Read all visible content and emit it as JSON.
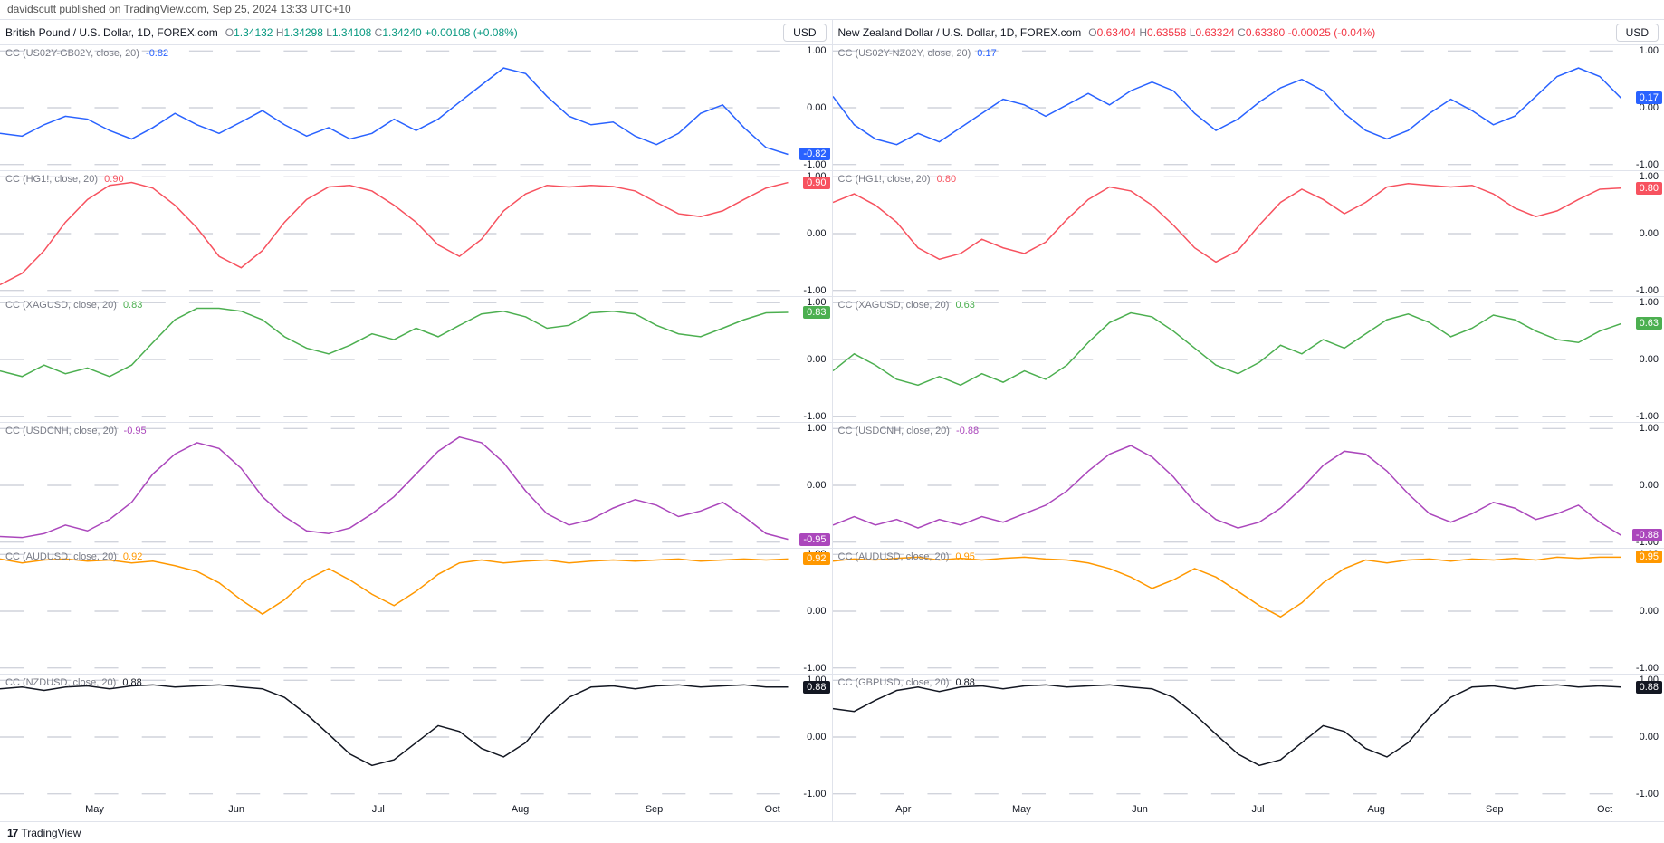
{
  "topbar": "davidscutt published on TradingView.com, Sep 25, 2024 13:33 UTC+10",
  "footer": {
    "logo": "17",
    "text": "TradingView"
  },
  "usd_label": "USD",
  "yticks": [
    "1.00",
    "0.00",
    "-1.00"
  ],
  "grid_color": "#d1d4dc",
  "colors": {
    "blue": "#2962ff",
    "red": "#f7525f",
    "green": "#4caf50",
    "purple": "#ab47bc",
    "orange": "#ff9800",
    "black": "#131722"
  },
  "columns": [
    {
      "title": "British Pound / U.S. Dollar, 1D, FOREX.com",
      "ohlc": {
        "O": "1.34132",
        "H": "1.34298",
        "L": "1.34108",
        "C": "1.34240",
        "chg": "+0.00108",
        "pct": "(+0.08%)",
        "dir": "pos"
      },
      "xticks": [
        {
          "p": 0.12,
          "l": "May"
        },
        {
          "p": 0.3,
          "l": "Jun"
        },
        {
          "p": 0.48,
          "l": "Jul"
        },
        {
          "p": 0.66,
          "l": "Aug"
        },
        {
          "p": 0.83,
          "l": "Sep"
        },
        {
          "p": 0.98,
          "l": "Oct"
        }
      ],
      "panels": [
        {
          "label": "CC (US02Y-GB02Y, close, 20)",
          "val": "-0.82",
          "color": "blue",
          "badge": "-0.82",
          "data": [
            -0.45,
            -0.5,
            -0.3,
            -0.15,
            -0.2,
            -0.4,
            -0.55,
            -0.35,
            -0.1,
            -0.3,
            -0.45,
            -0.25,
            -0.05,
            -0.3,
            -0.5,
            -0.35,
            -0.55,
            -0.45,
            -0.2,
            -0.4,
            -0.2,
            0.1,
            0.4,
            0.7,
            0.6,
            0.2,
            -0.15,
            -0.3,
            -0.25,
            -0.5,
            -0.65,
            -0.45,
            -0.1,
            0.05,
            -0.35,
            -0.7,
            -0.82
          ]
        },
        {
          "label": "CC (HG1!, close, 20)",
          "val": "0.90",
          "color": "red",
          "badge": "0.90",
          "data": [
            -0.9,
            -0.7,
            -0.3,
            0.2,
            0.6,
            0.85,
            0.9,
            0.8,
            0.5,
            0.1,
            -0.4,
            -0.6,
            -0.3,
            0.2,
            0.6,
            0.82,
            0.85,
            0.75,
            0.5,
            0.2,
            -0.2,
            -0.4,
            -0.1,
            0.4,
            0.7,
            0.85,
            0.82,
            0.85,
            0.83,
            0.75,
            0.55,
            0.35,
            0.3,
            0.4,
            0.6,
            0.8,
            0.9
          ]
        },
        {
          "label": "CC (XAGUSD, close, 20)",
          "val": "0.83",
          "color": "green",
          "badge": "0.83",
          "data": [
            -0.2,
            -0.3,
            -0.1,
            -0.25,
            -0.15,
            -0.3,
            -0.1,
            0.3,
            0.7,
            0.9,
            0.9,
            0.85,
            0.7,
            0.4,
            0.2,
            0.1,
            0.25,
            0.45,
            0.35,
            0.55,
            0.4,
            0.6,
            0.8,
            0.85,
            0.75,
            0.55,
            0.6,
            0.82,
            0.85,
            0.8,
            0.6,
            0.45,
            0.4,
            0.55,
            0.7,
            0.82,
            0.83
          ]
        },
        {
          "label": "CC (USDCNH, close, 20)",
          "val": "-0.95",
          "color": "purple",
          "badge": "-0.95",
          "data": [
            -0.9,
            -0.92,
            -0.85,
            -0.7,
            -0.8,
            -0.6,
            -0.3,
            0.2,
            0.55,
            0.75,
            0.65,
            0.3,
            -0.2,
            -0.55,
            -0.8,
            -0.85,
            -0.75,
            -0.5,
            -0.2,
            0.2,
            0.6,
            0.85,
            0.75,
            0.4,
            -0.1,
            -0.5,
            -0.7,
            -0.6,
            -0.4,
            -0.25,
            -0.35,
            -0.55,
            -0.45,
            -0.3,
            -0.55,
            -0.85,
            -0.95
          ]
        },
        {
          "label": "CC (AUDUSD, close, 20)",
          "val": "0.92",
          "color": "orange",
          "badge": "0.92",
          "data": [
            0.92,
            0.85,
            0.9,
            0.92,
            0.88,
            0.9,
            0.85,
            0.88,
            0.8,
            0.7,
            0.5,
            0.2,
            -0.05,
            0.2,
            0.55,
            0.75,
            0.55,
            0.3,
            0.1,
            0.35,
            0.65,
            0.85,
            0.9,
            0.85,
            0.88,
            0.9,
            0.85,
            0.88,
            0.9,
            0.88,
            0.9,
            0.92,
            0.88,
            0.9,
            0.92,
            0.9,
            0.92
          ]
        },
        {
          "label": "CC (NZDUSD, close, 20)",
          "val": "0.88",
          "color": "black",
          "badge": "0.88",
          "data": [
            0.85,
            0.88,
            0.82,
            0.88,
            0.9,
            0.85,
            0.9,
            0.92,
            0.88,
            0.9,
            0.92,
            0.88,
            0.85,
            0.7,
            0.4,
            0.05,
            -0.3,
            -0.5,
            -0.4,
            -0.1,
            0.2,
            0.1,
            -0.2,
            -0.35,
            -0.1,
            0.35,
            0.7,
            0.88,
            0.9,
            0.85,
            0.9,
            0.92,
            0.88,
            0.9,
            0.92,
            0.88,
            0.88
          ]
        }
      ]
    },
    {
      "title": "New Zealand Dollar / U.S. Dollar, 1D, FOREX.com",
      "ohlc": {
        "O": "0.63404",
        "H": "0.63558",
        "L": "0.63324",
        "C": "0.63380",
        "chg": "-0.00025",
        "pct": "(-0.04%)",
        "dir": "neg"
      },
      "xticks": [
        {
          "p": 0.09,
          "l": "Apr"
        },
        {
          "p": 0.24,
          "l": "May"
        },
        {
          "p": 0.39,
          "l": "Jun"
        },
        {
          "p": 0.54,
          "l": "Jul"
        },
        {
          "p": 0.69,
          "l": "Aug"
        },
        {
          "p": 0.84,
          "l": "Sep"
        },
        {
          "p": 0.98,
          "l": "Oct"
        }
      ],
      "panels": [
        {
          "label": "CC (US02Y-NZ02Y, close, 20)",
          "val": "0.17",
          "color": "blue",
          "badge": "0.17",
          "data": [
            0.2,
            -0.3,
            -0.55,
            -0.65,
            -0.45,
            -0.6,
            -0.35,
            -0.1,
            0.15,
            0.05,
            -0.15,
            0.05,
            0.25,
            0.05,
            0.3,
            0.45,
            0.3,
            -0.1,
            -0.4,
            -0.2,
            0.1,
            0.35,
            0.5,
            0.3,
            -0.1,
            -0.4,
            -0.55,
            -0.4,
            -0.1,
            0.15,
            -0.05,
            -0.3,
            -0.15,
            0.2,
            0.55,
            0.7,
            0.55,
            0.17
          ]
        },
        {
          "label": "CC (HG1!, close, 20)",
          "val": "0.80",
          "color": "red",
          "badge": "0.80",
          "data": [
            0.55,
            0.7,
            0.5,
            0.2,
            -0.25,
            -0.45,
            -0.35,
            -0.1,
            -0.25,
            -0.35,
            -0.15,
            0.25,
            0.6,
            0.82,
            0.75,
            0.5,
            0.15,
            -0.25,
            -0.5,
            -0.3,
            0.15,
            0.55,
            0.78,
            0.6,
            0.35,
            0.55,
            0.82,
            0.88,
            0.85,
            0.82,
            0.85,
            0.7,
            0.45,
            0.3,
            0.4,
            0.6,
            0.78,
            0.8
          ]
        },
        {
          "label": "CC (XAGUSD, close, 20)",
          "val": "0.63",
          "color": "green",
          "badge": "0.63",
          "data": [
            -0.2,
            0.1,
            -0.1,
            -0.35,
            -0.45,
            -0.3,
            -0.45,
            -0.25,
            -0.4,
            -0.2,
            -0.35,
            -0.1,
            0.3,
            0.65,
            0.82,
            0.75,
            0.5,
            0.2,
            -0.1,
            -0.25,
            -0.05,
            0.25,
            0.1,
            0.35,
            0.2,
            0.45,
            0.7,
            0.8,
            0.65,
            0.4,
            0.55,
            0.78,
            0.7,
            0.5,
            0.35,
            0.3,
            0.5,
            0.63
          ]
        },
        {
          "label": "CC (USDCNH, close, 20)",
          "val": "-0.88",
          "color": "purple",
          "badge": "-0.88",
          "data": [
            -0.7,
            -0.55,
            -0.7,
            -0.6,
            -0.75,
            -0.6,
            -0.7,
            -0.55,
            -0.65,
            -0.5,
            -0.35,
            -0.1,
            0.25,
            0.55,
            0.7,
            0.5,
            0.15,
            -0.3,
            -0.6,
            -0.75,
            -0.65,
            -0.4,
            -0.05,
            0.35,
            0.6,
            0.55,
            0.25,
            -0.15,
            -0.5,
            -0.65,
            -0.5,
            -0.3,
            -0.4,
            -0.6,
            -0.5,
            -0.35,
            -0.65,
            -0.88
          ]
        },
        {
          "label": "CC (AUDUSD, close, 20)",
          "val": "0.95",
          "color": "orange",
          "badge": "0.95",
          "data": [
            0.88,
            0.92,
            0.9,
            0.93,
            0.95,
            0.9,
            0.93,
            0.9,
            0.93,
            0.95,
            0.92,
            0.9,
            0.85,
            0.75,
            0.6,
            0.4,
            0.55,
            0.75,
            0.6,
            0.35,
            0.1,
            -0.1,
            0.15,
            0.5,
            0.75,
            0.9,
            0.85,
            0.9,
            0.92,
            0.88,
            0.92,
            0.9,
            0.93,
            0.9,
            0.95,
            0.93,
            0.95,
            0.95
          ]
        },
        {
          "label": "CC (GBPUSD, close, 20)",
          "val": "0.88",
          "color": "black",
          "badge": "0.88",
          "data": [
            0.5,
            0.45,
            0.65,
            0.82,
            0.88,
            0.8,
            0.88,
            0.9,
            0.85,
            0.9,
            0.92,
            0.88,
            0.9,
            0.92,
            0.88,
            0.85,
            0.7,
            0.4,
            0.05,
            -0.3,
            -0.5,
            -0.4,
            -0.1,
            0.2,
            0.1,
            -0.2,
            -0.35,
            -0.1,
            0.35,
            0.7,
            0.88,
            0.9,
            0.85,
            0.9,
            0.92,
            0.88,
            0.9,
            0.88
          ]
        }
      ]
    }
  ]
}
